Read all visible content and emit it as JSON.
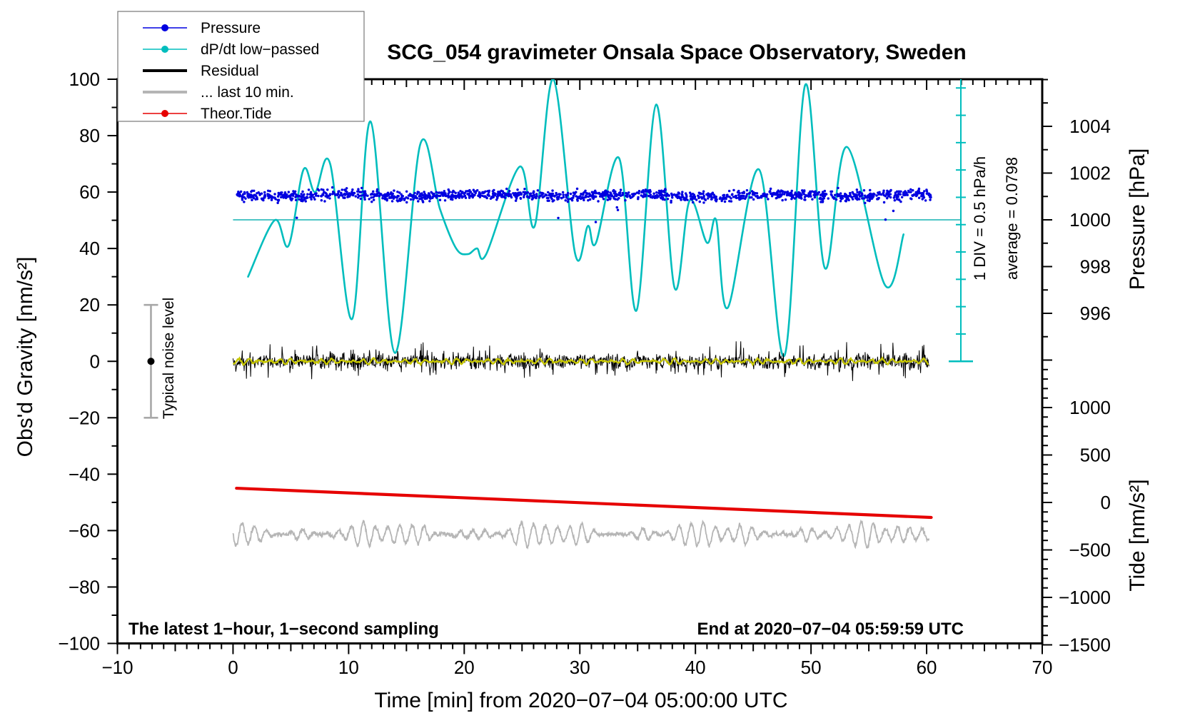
{
  "title": "SCG_054 gravimeter Onsala Space Observatory, Sweden",
  "corner_text_left": "The latest 1−hour, 1−second sampling",
  "corner_text_right": "End at 2020−07−04 05:59:59 UTC",
  "axes": {
    "x": {
      "label": "Time [min] from 2020−07−04 05:00:00 UTC",
      "min": -10,
      "max": 70,
      "major_step": 10,
      "mid_step": 5,
      "minor_step": 1
    },
    "gravity": {
      "label": "Obs'd Gravity [nm/s²]",
      "min": -100,
      "max": 100,
      "major_step": 20,
      "minor_step": 10
    },
    "pressure": {
      "label": "Pressure [hPa]",
      "labeled_ticks": [
        996,
        998,
        1000,
        1002,
        1004
      ],
      "minor_step": 1,
      "min": 995,
      "max": 1006,
      "hpa_at_gravity50": 1000
    },
    "tide": {
      "label": "Tide [nm/s²]",
      "labeled_ticks": [
        1000,
        500,
        0,
        -500,
        -1000,
        -1500
      ],
      "major_step": 500,
      "minor_step": 100,
      "min": -1500,
      "max": 1500
    }
  },
  "legend": {
    "items": [
      {
        "label": "Pressure",
        "color": "#0000e0",
        "marker": "dot",
        "lw": 1.6
      },
      {
        "label": "dP/dt low−passed",
        "color": "#00bdbd",
        "marker": "dot",
        "lw": 1.6
      },
      {
        "label": "Residual",
        "color": "#000000",
        "marker": "none",
        "lw": 4
      },
      {
        "label": "... last 10 min.",
        "color": "#b5b5b5",
        "marker": "none",
        "lw": 4
      },
      {
        "label": "Theor.Tide",
        "color": "#e60000",
        "marker": "dot",
        "lw": 1.6
      }
    ]
  },
  "annotations": {
    "scalebar_label": "1 DIV = 0.5 hPa/h",
    "average_label": "average = 0.0798",
    "noise_label": "Typical noise level",
    "noise_bar": {
      "center_gravity": 0,
      "half_range": 20,
      "time_min": -7.1
    }
  },
  "chart_data": {
    "type": "line",
    "title": "SCG_054 gravimeter Onsala Space Observatory, Sweden",
    "xlabel": "Time [min] from 2020−07−04 05:00:00 UTC",
    "x_range_min": [
      -10,
      70
    ],
    "gravity_range": [
      -100,
      100
    ],
    "pressure_axis_range_hPa": [
      995,
      1006
    ],
    "tide_axis_range": [
      -1500,
      1500
    ],
    "series": [
      {
        "name": "Pressure",
        "type": "scatter",
        "axis": "pressure_hPa",
        "color": "#0000e0",
        "t_range": [
          0.3,
          60.4
        ],
        "mean_hPa": 1001.05,
        "typical_spread_hPa": 0.12,
        "outliers_down_to_hPa": 1000.0,
        "n_points": 1500
      },
      {
        "name": "dP/dt low−passed",
        "type": "line",
        "axis": "gravity_display_units",
        "color": "#00bdbd",
        "zero_reference_gravity": 50,
        "div_in_gravity_units": 9.69,
        "div_value_hPa_per_h": 0.5,
        "average_hPa_per_h": 0.0798,
        "points_t_g": [
          [
            1.3,
            30
          ],
          [
            3.6,
            50
          ],
          [
            4.8,
            41
          ],
          [
            6.1,
            68
          ],
          [
            7.1,
            60
          ],
          [
            8.4,
            70
          ],
          [
            10.3,
            15
          ],
          [
            11.9,
            85
          ],
          [
            14.0,
            3
          ],
          [
            16.2,
            77
          ],
          [
            17.9,
            54
          ],
          [
            19.3,
            40
          ],
          [
            20.3,
            38
          ],
          [
            21.1,
            40
          ],
          [
            21.9,
            38
          ],
          [
            24.8,
            69
          ],
          [
            26.1,
            48
          ],
          [
            27.7,
            100
          ],
          [
            29.6,
            38
          ],
          [
            30.7,
            48
          ],
          [
            31.4,
            42
          ],
          [
            33.4,
            72
          ],
          [
            34.9,
            18
          ],
          [
            36.6,
            91
          ],
          [
            38.2,
            26
          ],
          [
            39.5,
            57
          ],
          [
            41.0,
            42
          ],
          [
            41.8,
            50
          ],
          [
            42.8,
            19
          ],
          [
            45.5,
            68
          ],
          [
            47.7,
            2
          ],
          [
            49.5,
            98
          ],
          [
            51.2,
            33
          ],
          [
            53.1,
            76
          ],
          [
            56.4,
            27
          ],
          [
            58.0,
            45
          ]
        ]
      },
      {
        "name": "Pressure reference line",
        "type": "hline",
        "axis": "pressure_hPa",
        "color": "#35bdbd",
        "value_hPa": 1000,
        "t_range": [
          0,
          63.0
        ]
      },
      {
        "name": "Residual",
        "type": "noise-line",
        "axis": "gravity_nm_s2",
        "color": "#000000",
        "center": 0,
        "typical_amplitude": 2,
        "spike_amplitude": 7,
        "t_range": [
          0,
          60.2
        ]
      },
      {
        "name": "Residual low-passed",
        "type": "line",
        "axis": "gravity_nm_s2",
        "color": "#c6c600",
        "center": 0,
        "amplitude": 1,
        "t_range": [
          0,
          60.2
        ]
      },
      {
        "name": "... last 10 min.",
        "type": "line",
        "axis": "gravity_display_units",
        "color": "#b5b5b5",
        "center": -61.3,
        "amplitude_range": [
          1,
          4.5
        ],
        "period_min": 1.05,
        "t_range": [
          0,
          60.2
        ]
      },
      {
        "name": "Theor.Tide",
        "type": "line",
        "axis": "tide_nm_s2",
        "color": "#e60000",
        "points_t_tide": [
          [
            0.3,
            150
          ],
          [
            60.4,
            -158
          ]
        ]
      }
    ]
  }
}
